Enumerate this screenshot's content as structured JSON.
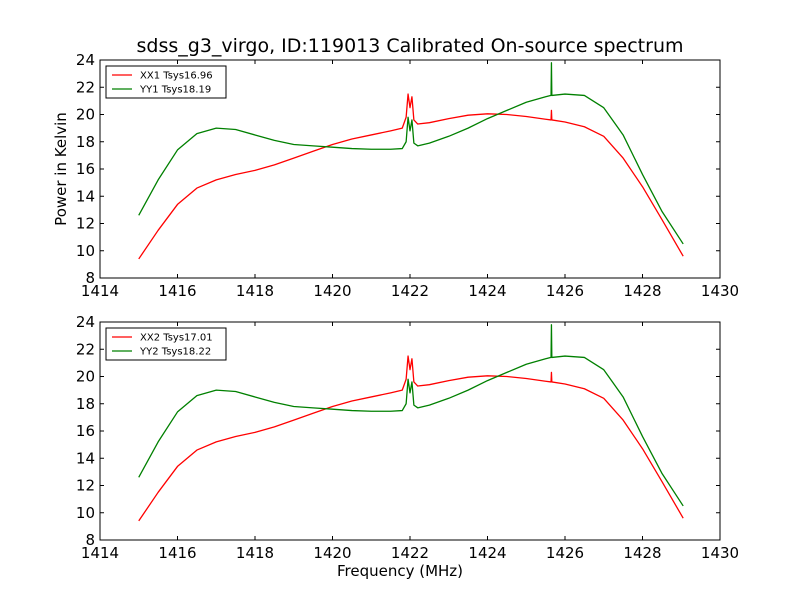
{
  "title": "sdss_g3_virgo, ID:119013 Calibrated On-source spectrum",
  "colors": {
    "xx": "#ff0000",
    "yy": "#008000"
  },
  "chart_data": [
    {
      "type": "line",
      "xlabel": "",
      "ylabel": "Power in Kelvin",
      "xlim": [
        1414,
        1430
      ],
      "ylim": [
        8,
        24
      ],
      "xticks": [
        1414,
        1416,
        1418,
        1420,
        1422,
        1424,
        1426,
        1428,
        1430
      ],
      "yticks": [
        8,
        10,
        12,
        14,
        16,
        18,
        20,
        22,
        24
      ],
      "legend": "top-left",
      "series": [
        {
          "name": "XX1 Tsys16.96",
          "color": "#ff0000",
          "x": [
            1415.0,
            1415.5,
            1416.0,
            1416.5,
            1417.0,
            1417.5,
            1418.0,
            1418.5,
            1419.0,
            1419.5,
            1420.0,
            1420.5,
            1421.0,
            1421.5,
            1421.8,
            1421.9,
            1421.95,
            1422.0,
            1422.05,
            1422.1,
            1422.2,
            1422.5,
            1423.0,
            1423.5,
            1424.0,
            1424.5,
            1425.0,
            1425.5,
            1425.64,
            1425.65,
            1425.66,
            1426.0,
            1426.5,
            1427.0,
            1427.5,
            1428.0,
            1428.5,
            1429.05
          ],
          "values": [
            9.4,
            11.5,
            13.4,
            14.6,
            15.2,
            15.6,
            15.9,
            16.3,
            16.8,
            17.3,
            17.8,
            18.2,
            18.5,
            18.8,
            19.0,
            19.8,
            21.5,
            20.5,
            21.3,
            19.6,
            19.3,
            19.4,
            19.7,
            19.95,
            20.05,
            20.0,
            19.85,
            19.65,
            19.6,
            20.3,
            19.6,
            19.45,
            19.1,
            18.4,
            16.8,
            14.7,
            12.3,
            9.6
          ]
        },
        {
          "name": "YY1 Tsys18.19",
          "color": "#008000",
          "x": [
            1415.0,
            1415.5,
            1416.0,
            1416.5,
            1417.0,
            1417.5,
            1418.0,
            1418.5,
            1419.0,
            1419.5,
            1420.0,
            1420.5,
            1421.0,
            1421.5,
            1421.8,
            1421.9,
            1421.95,
            1422.0,
            1422.05,
            1422.1,
            1422.2,
            1422.5,
            1423.0,
            1423.5,
            1424.0,
            1424.5,
            1425.0,
            1425.5,
            1425.64,
            1425.65,
            1425.66,
            1426.0,
            1426.5,
            1427.0,
            1427.5,
            1428.0,
            1428.5,
            1429.05
          ],
          "values": [
            12.6,
            15.2,
            17.4,
            18.6,
            19.0,
            18.9,
            18.5,
            18.1,
            17.8,
            17.7,
            17.6,
            17.5,
            17.45,
            17.45,
            17.5,
            18.0,
            19.8,
            18.8,
            19.6,
            17.9,
            17.7,
            17.9,
            18.4,
            19.0,
            19.7,
            20.3,
            20.9,
            21.3,
            21.4,
            23.8,
            21.4,
            21.5,
            21.4,
            20.5,
            18.5,
            15.6,
            12.9,
            10.5
          ]
        }
      ]
    },
    {
      "type": "line",
      "xlabel": "Frequency (MHz)",
      "ylabel": "",
      "xlim": [
        1414,
        1430
      ],
      "ylim": [
        8,
        24
      ],
      "xticks": [
        1414,
        1416,
        1418,
        1420,
        1422,
        1424,
        1426,
        1428,
        1430
      ],
      "yticks": [
        8,
        10,
        12,
        14,
        16,
        18,
        20,
        22,
        24
      ],
      "legend": "top-left",
      "series": [
        {
          "name": "XX2 Tsys17.01",
          "color": "#ff0000",
          "x": [
            1415.0,
            1415.5,
            1416.0,
            1416.5,
            1417.0,
            1417.5,
            1418.0,
            1418.5,
            1419.0,
            1419.5,
            1420.0,
            1420.5,
            1421.0,
            1421.5,
            1421.8,
            1421.9,
            1421.95,
            1422.0,
            1422.05,
            1422.1,
            1422.2,
            1422.5,
            1423.0,
            1423.5,
            1424.0,
            1424.5,
            1425.0,
            1425.5,
            1425.64,
            1425.65,
            1425.66,
            1426.0,
            1426.5,
            1427.0,
            1427.5,
            1428.0,
            1428.5,
            1429.05
          ],
          "values": [
            9.4,
            11.5,
            13.4,
            14.6,
            15.2,
            15.6,
            15.9,
            16.3,
            16.8,
            17.3,
            17.8,
            18.2,
            18.5,
            18.8,
            19.0,
            19.8,
            21.5,
            20.5,
            21.3,
            19.6,
            19.3,
            19.4,
            19.7,
            19.95,
            20.05,
            20.0,
            19.85,
            19.65,
            19.6,
            20.3,
            19.6,
            19.45,
            19.1,
            18.4,
            16.8,
            14.7,
            12.3,
            9.6
          ]
        },
        {
          "name": "YY2 Tsys18.22",
          "color": "#008000",
          "x": [
            1415.0,
            1415.5,
            1416.0,
            1416.5,
            1417.0,
            1417.5,
            1418.0,
            1418.5,
            1419.0,
            1419.5,
            1420.0,
            1420.5,
            1421.0,
            1421.5,
            1421.8,
            1421.9,
            1421.95,
            1422.0,
            1422.05,
            1422.1,
            1422.2,
            1422.5,
            1423.0,
            1423.5,
            1424.0,
            1424.5,
            1425.0,
            1425.5,
            1425.64,
            1425.65,
            1425.66,
            1426.0,
            1426.5,
            1427.0,
            1427.5,
            1428.0,
            1428.5,
            1429.05
          ],
          "values": [
            12.6,
            15.2,
            17.4,
            18.6,
            19.0,
            18.9,
            18.5,
            18.1,
            17.8,
            17.7,
            17.6,
            17.5,
            17.45,
            17.45,
            17.5,
            18.0,
            19.8,
            18.8,
            19.6,
            17.9,
            17.7,
            17.9,
            18.4,
            19.0,
            19.7,
            20.3,
            20.9,
            21.3,
            21.4,
            23.8,
            21.4,
            21.5,
            21.4,
            20.5,
            18.5,
            15.6,
            12.9,
            10.5
          ]
        }
      ]
    }
  ]
}
